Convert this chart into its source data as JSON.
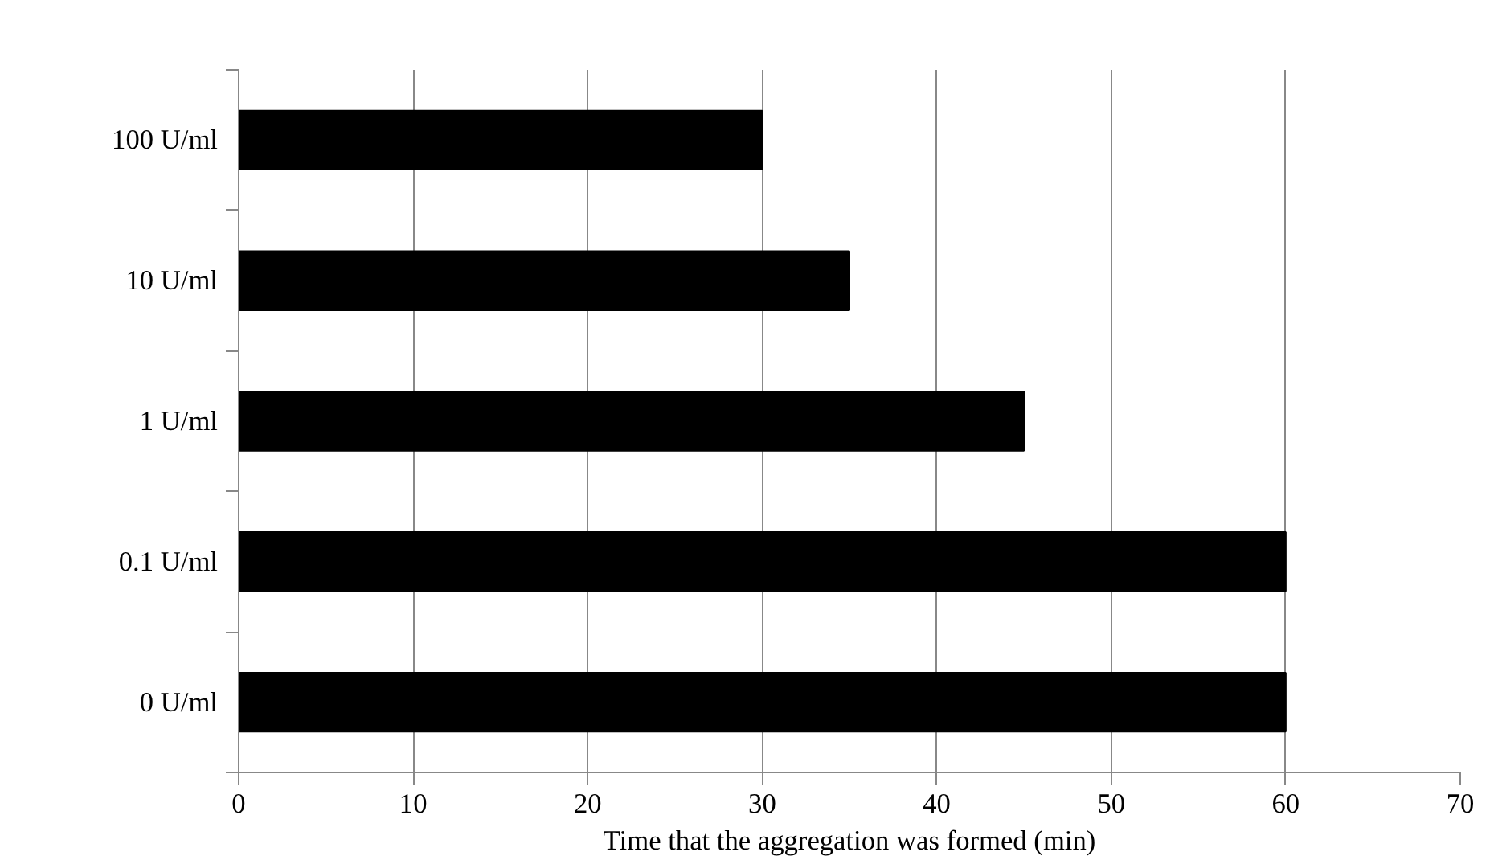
{
  "chart_data": {
    "type": "bar",
    "orientation": "horizontal",
    "categories": [
      "100 U/ml",
      "10 U/ml",
      "1 U/ml",
      "0.1 U/ml",
      "0 U/ml"
    ],
    "values": [
      30,
      35,
      45,
      60,
      60
    ],
    "color": "#000000",
    "xlabel": "Time that the aggregation was formed (min)",
    "xlim": [
      0,
      70
    ],
    "xticks": [
      0,
      10,
      20,
      30,
      40,
      50,
      60,
      70
    ],
    "grid": "x"
  }
}
